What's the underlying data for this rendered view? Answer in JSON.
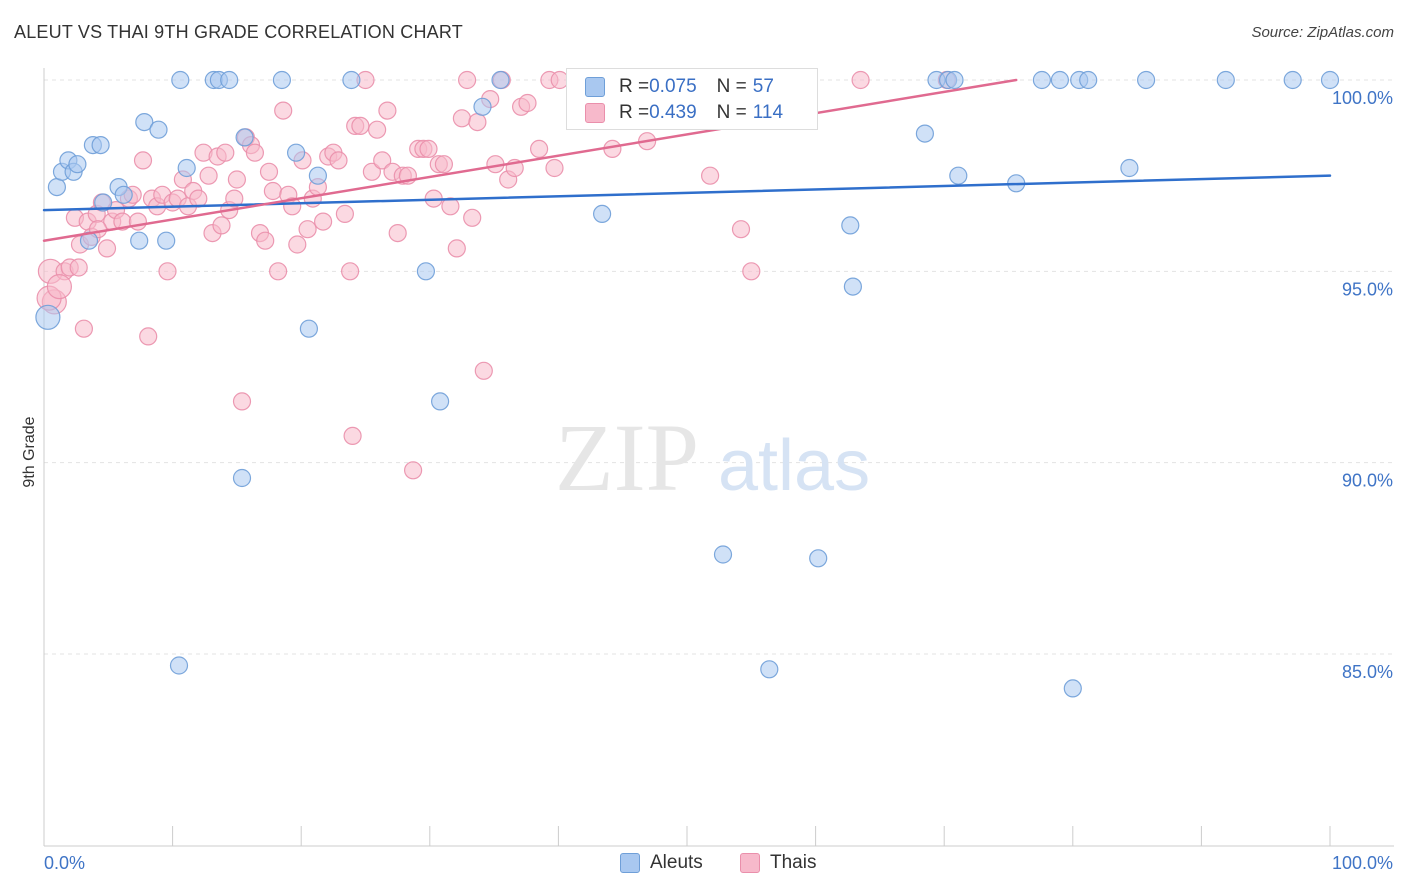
{
  "header": {
    "title": "ALEUT VS THAI 9TH GRADE CORRELATION CHART",
    "source": "Source: ZipAtlas.com"
  },
  "watermark": {
    "zip": "ZIP",
    "atlas": "atlas"
  },
  "stats": {
    "aleuts": {
      "r_label": "R = ",
      "r_value": "0.075",
      "n_label": "N = ",
      "n_value": "57"
    },
    "thais": {
      "r_label": "R = ",
      "r_value": "0.439",
      "n_label": "N = ",
      "n_value": "114"
    }
  },
  "colors": {
    "aleuts_fill": "#a9c8f0",
    "aleuts_stroke": "#6f9fd8",
    "aleuts_line": "#2f6fcc",
    "thais_fill": "#f7b9cb",
    "thais_stroke": "#ea8fab",
    "thais_line": "#e06a90",
    "tick_label": "#3f74c6",
    "grid": "#e3e3e3"
  },
  "chart_data": {
    "type": "scatter",
    "title": "ALEUT VS THAI 9TH GRADE CORRELATION CHART",
    "xlabel": "",
    "ylabel": "9th Grade",
    "xlim": [
      0,
      100
    ],
    "ylim": [
      80.5,
      101.5
    ],
    "x_tick_labels": [
      "0.0%",
      "100.0%"
    ],
    "y_ticks": [
      85,
      90,
      95,
      100
    ],
    "y_tick_labels": [
      "85.0%",
      "90.0%",
      "95.0%",
      "100.0%"
    ],
    "grid": true,
    "legend_position": "bottom-center",
    "series": [
      {
        "name": "Aleuts",
        "r": 0.075,
        "n": 57,
        "trend": {
          "x": [
            0,
            100
          ],
          "y": [
            96.6,
            97.5
          ]
        },
        "points": [
          [
            0.3,
            93.8
          ],
          [
            1.0,
            97.2
          ],
          [
            1.4,
            97.6
          ],
          [
            1.9,
            97.9
          ],
          [
            2.3,
            97.6
          ],
          [
            2.6,
            97.8
          ],
          [
            3.5,
            95.8
          ],
          [
            3.8,
            98.3
          ],
          [
            4.4,
            98.3
          ],
          [
            4.6,
            96.8
          ],
          [
            5.8,
            97.2
          ],
          [
            6.2,
            97.0
          ],
          [
            7.4,
            95.8
          ],
          [
            7.8,
            98.9
          ],
          [
            8.9,
            98.7
          ],
          [
            9.5,
            95.8
          ],
          [
            10.5,
            84.7
          ],
          [
            11.1,
            97.7
          ],
          [
            10.6,
            100.0
          ],
          [
            13.2,
            100.0
          ],
          [
            13.6,
            100.0
          ],
          [
            14.4,
            100.0
          ],
          [
            15.4,
            89.6
          ],
          [
            15.6,
            98.5
          ],
          [
            18.5,
            100.0
          ],
          [
            19.6,
            98.1
          ],
          [
            20.6,
            93.5
          ],
          [
            21.3,
            97.5
          ],
          [
            23.9,
            100.0
          ],
          [
            29.7,
            95.0
          ],
          [
            30.8,
            91.6
          ],
          [
            34.1,
            99.3
          ],
          [
            35.5,
            100.0
          ],
          [
            43.4,
            96.5
          ],
          [
            47.8,
            100.0
          ],
          [
            52.8,
            87.6
          ],
          [
            56.4,
            84.6
          ],
          [
            56.6,
            100.0
          ],
          [
            60.2,
            87.5
          ],
          [
            62.7,
            96.2
          ],
          [
            62.9,
            94.6
          ],
          [
            68.5,
            98.6
          ],
          [
            69.4,
            100.0
          ],
          [
            70.3,
            100.0
          ],
          [
            71.1,
            97.5
          ],
          [
            75.6,
            97.3
          ],
          [
            77.6,
            100.0
          ],
          [
            79.0,
            100.0
          ],
          [
            80.5,
            100.0
          ],
          [
            80.0,
            84.1
          ],
          [
            81.2,
            100.0
          ],
          [
            84.4,
            97.7
          ],
          [
            85.7,
            100.0
          ],
          [
            91.9,
            100.0
          ],
          [
            97.1,
            100.0
          ],
          [
            100.0,
            100.0
          ],
          [
            70.8,
            100.0
          ]
        ]
      },
      {
        "name": "Thais",
        "r": 0.439,
        "n": 114,
        "trend": {
          "x": [
            0,
            75.6
          ],
          "y": [
            95.8,
            100.0
          ]
        },
        "points": [
          [
            0.5,
            95.0
          ],
          [
            0.8,
            94.2
          ],
          [
            1.6,
            95.0
          ],
          [
            2.0,
            95.1
          ],
          [
            2.4,
            96.4
          ],
          [
            2.8,
            95.7
          ],
          [
            3.1,
            93.5
          ],
          [
            3.4,
            96.3
          ],
          [
            3.7,
            95.9
          ],
          [
            4.1,
            96.5
          ],
          [
            4.5,
            96.8
          ],
          [
            4.9,
            95.6
          ],
          [
            5.3,
            96.3
          ],
          [
            5.6,
            96.6
          ],
          [
            6.1,
            96.3
          ],
          [
            6.6,
            96.9
          ],
          [
            6.9,
            97.0
          ],
          [
            7.3,
            96.3
          ],
          [
            7.7,
            97.9
          ],
          [
            8.1,
            93.3
          ],
          [
            8.4,
            96.9
          ],
          [
            8.8,
            96.7
          ],
          [
            9.2,
            97.0
          ],
          [
            9.6,
            95.0
          ],
          [
            10.0,
            96.8
          ],
          [
            10.4,
            96.9
          ],
          [
            10.8,
            97.4
          ],
          [
            11.2,
            96.7
          ],
          [
            11.6,
            97.1
          ],
          [
            12.0,
            96.9
          ],
          [
            12.4,
            98.1
          ],
          [
            12.8,
            97.5
          ],
          [
            13.1,
            96.0
          ],
          [
            13.5,
            98.0
          ],
          [
            13.8,
            96.2
          ],
          [
            14.1,
            98.1
          ],
          [
            14.4,
            96.6
          ],
          [
            14.8,
            96.9
          ],
          [
            15.0,
            97.4
          ],
          [
            15.4,
            91.6
          ],
          [
            15.7,
            98.5
          ],
          [
            16.1,
            98.3
          ],
          [
            16.4,
            98.1
          ],
          [
            16.8,
            96.0
          ],
          [
            17.2,
            95.8
          ],
          [
            17.5,
            97.6
          ],
          [
            17.8,
            97.1
          ],
          [
            18.2,
            95.0
          ],
          [
            18.6,
            99.2
          ],
          [
            19.0,
            97.0
          ],
          [
            19.3,
            96.7
          ],
          [
            19.7,
            95.7
          ],
          [
            20.1,
            97.9
          ],
          [
            20.5,
            96.1
          ],
          [
            20.9,
            96.9
          ],
          [
            21.3,
            97.2
          ],
          [
            21.7,
            96.3
          ],
          [
            22.1,
            98.0
          ],
          [
            22.5,
            98.1
          ],
          [
            22.9,
            97.9
          ],
          [
            23.4,
            96.5
          ],
          [
            23.8,
            95.0
          ],
          [
            24.2,
            98.8
          ],
          [
            24.6,
            98.8
          ],
          [
            24.0,
            90.7
          ],
          [
            25.0,
            100.0
          ],
          [
            25.5,
            97.6
          ],
          [
            25.9,
            98.7
          ],
          [
            26.3,
            97.9
          ],
          [
            26.7,
            99.2
          ],
          [
            27.1,
            97.6
          ],
          [
            27.5,
            96.0
          ],
          [
            27.9,
            97.5
          ],
          [
            28.3,
            97.5
          ],
          [
            28.7,
            89.8
          ],
          [
            29.1,
            98.2
          ],
          [
            29.5,
            98.2
          ],
          [
            29.9,
            98.2
          ],
          [
            30.3,
            96.9
          ],
          [
            30.7,
            97.8
          ],
          [
            31.1,
            97.8
          ],
          [
            31.6,
            96.7
          ],
          [
            32.1,
            95.6
          ],
          [
            32.5,
            99.0
          ],
          [
            32.9,
            100.0
          ],
          [
            33.3,
            96.4
          ],
          [
            33.7,
            98.9
          ],
          [
            34.2,
            92.4
          ],
          [
            34.7,
            99.5
          ],
          [
            35.1,
            97.8
          ],
          [
            35.6,
            100.0
          ],
          [
            36.1,
            97.4
          ],
          [
            36.6,
            97.7
          ],
          [
            37.1,
            99.3
          ],
          [
            37.6,
            99.4
          ],
          [
            38.5,
            98.2
          ],
          [
            39.3,
            100.0
          ],
          [
            39.7,
            97.7
          ],
          [
            40.1,
            100.0
          ],
          [
            41.3,
            100.0
          ],
          [
            42.7,
            100.0
          ],
          [
            44.2,
            98.2
          ],
          [
            46.9,
            98.4
          ],
          [
            47.4,
            99.0
          ],
          [
            49.4,
            99.2
          ],
          [
            51.8,
            97.5
          ],
          [
            54.2,
            96.1
          ],
          [
            55.0,
            95.0
          ],
          [
            63.5,
            100.0
          ],
          [
            70.2,
            100.0
          ],
          [
            0.4,
            94.3
          ],
          [
            1.2,
            94.6
          ],
          [
            2.7,
            95.1
          ],
          [
            4.2,
            96.1
          ]
        ]
      }
    ]
  }
}
